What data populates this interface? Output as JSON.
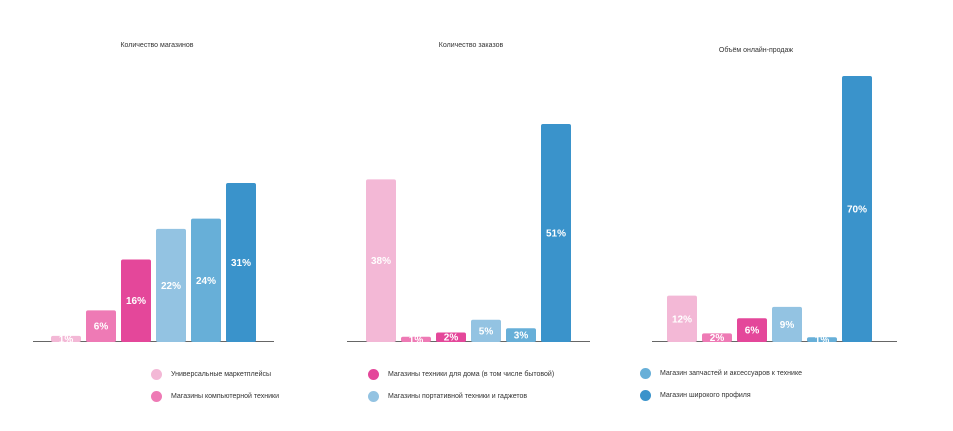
{
  "colors": {
    "universal": "#f3b8d6",
    "computer": "#ee7ab5",
    "home_appliance": "#e4479a",
    "portable": "#93c3e2",
    "parts": "#67afd8",
    "wide_profile": "#3a93cb",
    "axis": "#666666",
    "label": "#ffffff"
  },
  "chart_data": [
    {
      "type": "bar",
      "title": "Количество магазинов",
      "categories": [
        "Универсальные маркетплейсы",
        "Магазины компьютерной техники",
        "Магазины техники для дома (в том числе бытовой)",
        "Магазины портативной техники и гаджетов",
        "Магазин запчастей и аксессуаров к технике",
        "Магазин широкого профиля"
      ],
      "values": [
        1,
        6,
        16,
        22,
        24,
        31
      ],
      "labels": [
        "1%",
        "6%",
        "16%",
        "22%",
        "24%",
        "31%"
      ],
      "ylim": [
        0,
        31
      ],
      "grid": false
    },
    {
      "type": "bar",
      "title": "Количество заказов",
      "categories": [
        "Универсальные маркетплейсы",
        "Магазины компьютерной техники",
        "Магазины техники для дома (в том числе бытовой)",
        "Магазины портативной техники и гаджетов",
        "Магазин запчастей и аксессуаров к технике",
        "Магазин широкого профиля"
      ],
      "values": [
        38,
        1,
        2,
        5,
        3,
        51
      ],
      "labels": [
        "38%",
        "1%",
        "2%",
        "5%",
        "3%",
        "51%"
      ],
      "ylim": [
        0,
        51
      ],
      "grid": false
    },
    {
      "type": "bar",
      "title": "Объём онлайн-продаж",
      "categories": [
        "Универсальные маркетплейсы",
        "Магазины компьютерной техники",
        "Магазины техники для дома (в том числе бытовой)",
        "Магазины портативной техники и гаджетов",
        "Магазин запчастей и аксессуаров к технике",
        "Магазин широкого профиля"
      ],
      "values": [
        12,
        2,
        6,
        9,
        1,
        70
      ],
      "labels": [
        "12%",
        "2%",
        "6%",
        "9%",
        "1%",
        "70%"
      ],
      "ylim": [
        0,
        70
      ],
      "grid": false
    }
  ],
  "legend": {
    "placement": "bottom",
    "items": [
      {
        "label": "Универсальные маркетплейсы",
        "color": "#f3b8d6"
      },
      {
        "label": "Магазины компьютерной техники",
        "color": "#ee7ab5"
      },
      {
        "label": "Магазины техники для дома (в том числе бытовой)",
        "color": "#e4479a"
      },
      {
        "label": "Магазины портативной техники и гаджетов",
        "color": "#93c3e2"
      },
      {
        "label": "Магазин запчастей и аксессуаров к технике",
        "color": "#67afd8"
      },
      {
        "label": "Магазин широкого профиля",
        "color": "#3a93cb"
      }
    ]
  }
}
